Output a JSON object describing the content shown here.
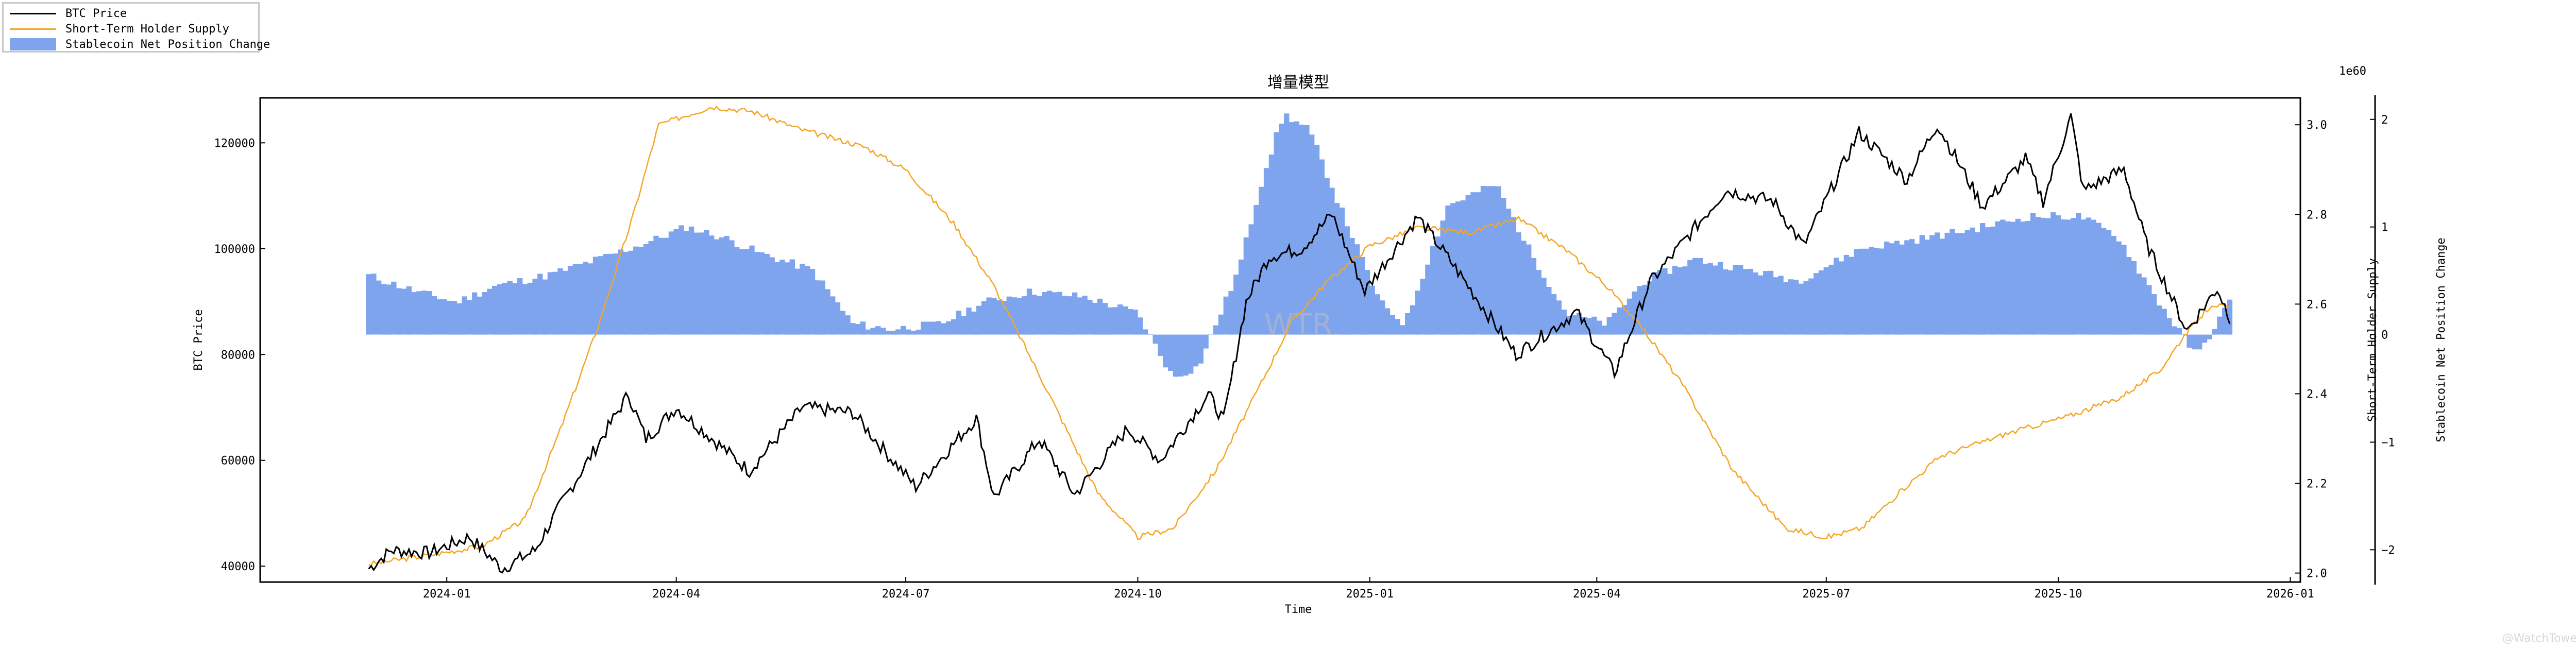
{
  "chart_data": {
    "type": "line",
    "title": "增量模型",
    "xlabel": "Time",
    "ylabel": "BTC Price",
    "y2label": "Short-Term Holder Supply",
    "y3label": "Stablecoin Net Position Change",
    "y2_offset_text": "1e60",
    "watermark": "WTR",
    "grid": false,
    "legend_position": "top-left",
    "x_ticks": [
      "2024-01",
      "2024-04",
      "2024-07",
      "2024-10",
      "2025-01",
      "2025-04",
      "2025-07",
      "2025-10",
      "2026-01"
    ],
    "y_ticks": [
      "40000",
      "60000",
      "80000",
      "100000",
      "120000"
    ],
    "y2_ticks": [
      "2.0",
      "2.2",
      "2.4",
      "2.6",
      "2.8",
      "3.0"
    ],
    "y3_ticks": [
      "−2",
      "−1",
      "0",
      "1",
      "2"
    ],
    "xlim": [
      "2023-10-19",
      "2026-01-05"
    ],
    "ylim": [
      37000,
      128500
    ],
    "y2lim": [
      1.98,
      3.06
    ],
    "y3lim": [
      -2.3,
      2.2
    ],
    "series": [
      {
        "name": "BTC Price",
        "color": "#000000",
        "axis": "left",
        "points": [
          [
            "2023-12-01",
            39500
          ],
          [
            "2023-12-10",
            43000
          ],
          [
            "2023-12-25",
            42500
          ],
          [
            "2024-01-10",
            45500
          ],
          [
            "2024-01-23",
            39500
          ],
          [
            "2024-02-05",
            43000
          ],
          [
            "2024-02-15",
            51500
          ],
          [
            "2024-02-28",
            61500
          ],
          [
            "2024-03-13",
            72500
          ],
          [
            "2024-03-20",
            64000
          ],
          [
            "2024-04-01",
            70000
          ],
          [
            "2024-04-13",
            65000
          ],
          [
            "2024-04-30",
            58000
          ],
          [
            "2024-05-21",
            70000
          ],
          [
            "2024-06-10",
            69000
          ],
          [
            "2024-06-24",
            61000
          ],
          [
            "2024-07-05",
            55000
          ],
          [
            "2024-07-29",
            68000
          ],
          [
            "2024-08-05",
            53000
          ],
          [
            "2024-08-23",
            64000
          ],
          [
            "2024-09-06",
            53500
          ],
          [
            "2024-09-27",
            66000
          ],
          [
            "2024-10-10",
            60000
          ],
          [
            "2024-10-29",
            72500
          ],
          [
            "2024-11-04",
            67500
          ],
          [
            "2024-11-13",
            90000
          ],
          [
            "2024-11-22",
            98500
          ],
          [
            "2024-12-05",
            100000
          ],
          [
            "2024-12-17",
            106500
          ],
          [
            "2024-12-30",
            92000
          ],
          [
            "2025-01-20",
            106000
          ],
          [
            "2025-02-03",
            97000
          ],
          [
            "2025-02-28",
            80000
          ],
          [
            "2025-03-24",
            88000
          ],
          [
            "2025-04-08",
            76500
          ],
          [
            "2025-04-22",
            93500
          ],
          [
            "2025-05-22",
            111000
          ],
          [
            "2025-06-10",
            109000
          ],
          [
            "2025-06-22",
            100500
          ],
          [
            "2025-07-14",
            122000
          ],
          [
            "2025-08-02",
            113000
          ],
          [
            "2025-08-14",
            123500
          ],
          [
            "2025-09-01",
            108000
          ],
          [
            "2025-09-18",
            117000
          ],
          [
            "2025-09-25",
            109000
          ],
          [
            "2025-10-06",
            125000
          ],
          [
            "2025-10-11",
            111000
          ],
          [
            "2025-10-27",
            115000
          ],
          [
            "2025-11-05",
            101000
          ],
          [
            "2025-11-21",
            84500
          ],
          [
            "2025-12-03",
            92500
          ],
          [
            "2025-12-08",
            87000
          ]
        ]
      },
      {
        "name": "Short-Term Holder Supply",
        "color": "#f5a623",
        "axis": "right",
        "points": [
          [
            "2023-12-01",
            2.02
          ],
          [
            "2023-12-25",
            2.04
          ],
          [
            "2024-01-15",
            2.06
          ],
          [
            "2024-02-01",
            2.12
          ],
          [
            "2024-02-15",
            2.32
          ],
          [
            "2024-03-01",
            2.55
          ],
          [
            "2024-03-15",
            2.8
          ],
          [
            "2024-03-25",
            3.0
          ],
          [
            "2024-04-15",
            3.04
          ],
          [
            "2024-05-01",
            3.03
          ],
          [
            "2024-05-20",
            2.99
          ],
          [
            "2024-06-15",
            2.95
          ],
          [
            "2024-07-01",
            2.9
          ],
          [
            "2024-07-20",
            2.78
          ],
          [
            "2024-08-05",
            2.64
          ],
          [
            "2024-08-25",
            2.42
          ],
          [
            "2024-09-15",
            2.18
          ],
          [
            "2024-10-01",
            2.08
          ],
          [
            "2024-10-15",
            2.1
          ],
          [
            "2024-11-01",
            2.23
          ],
          [
            "2024-11-15",
            2.38
          ],
          [
            "2024-12-01",
            2.56
          ],
          [
            "2024-12-15",
            2.65
          ],
          [
            "2025-01-01",
            2.73
          ],
          [
            "2025-01-20",
            2.77
          ],
          [
            "2025-02-10",
            2.76
          ],
          [
            "2025-03-01",
            2.79
          ],
          [
            "2025-03-20",
            2.72
          ],
          [
            "2025-04-05",
            2.64
          ],
          [
            "2025-04-20",
            2.54
          ],
          [
            "2025-05-05",
            2.42
          ],
          [
            "2025-05-25",
            2.23
          ],
          [
            "2025-06-15",
            2.1
          ],
          [
            "2025-07-01",
            2.08
          ],
          [
            "2025-07-15",
            2.1
          ],
          [
            "2025-08-01",
            2.19
          ],
          [
            "2025-08-15",
            2.26
          ],
          [
            "2025-09-10",
            2.31
          ],
          [
            "2025-10-05",
            2.35
          ],
          [
            "2025-10-25",
            2.39
          ],
          [
            "2025-11-10",
            2.45
          ],
          [
            "2025-11-20",
            2.53
          ],
          [
            "2025-12-01",
            2.6
          ],
          [
            "2025-12-08",
            2.59
          ]
        ]
      },
      {
        "name": "Stablecoin Net Position Change",
        "color": "#7fa4ee",
        "axis": "right2",
        "type": "bar",
        "points": [
          [
            "2023-12-01",
            0.55
          ],
          [
            "2023-12-20",
            0.4
          ],
          [
            "2024-01-05",
            0.3
          ],
          [
            "2024-01-20",
            0.45
          ],
          [
            "2024-02-10",
            0.55
          ],
          [
            "2024-03-01",
            0.7
          ],
          [
            "2024-03-20",
            0.85
          ],
          [
            "2024-04-05",
            1.0
          ],
          [
            "2024-04-20",
            0.9
          ],
          [
            "2024-05-05",
            0.75
          ],
          [
            "2024-05-25",
            0.6
          ],
          [
            "2024-06-10",
            0.1
          ],
          [
            "2024-06-25",
            0.05
          ],
          [
            "2024-07-15",
            0.1
          ],
          [
            "2024-08-01",
            0.3
          ],
          [
            "2024-08-20",
            0.4
          ],
          [
            "2024-09-10",
            0.35
          ],
          [
            "2024-10-01",
            0.2
          ],
          [
            "2024-10-15",
            -0.4
          ],
          [
            "2024-10-25",
            -0.3
          ],
          [
            "2024-11-10",
            0.6
          ],
          [
            "2024-11-20",
            1.5
          ],
          [
            "2024-11-28",
            2.05
          ],
          [
            "2024-12-08",
            1.9
          ],
          [
            "2024-12-20",
            1.2
          ],
          [
            "2025-01-05",
            0.3
          ],
          [
            "2025-01-15",
            0.1
          ],
          [
            "2025-02-01",
            1.2
          ],
          [
            "2025-02-20",
            1.4
          ],
          [
            "2025-03-05",
            0.8
          ],
          [
            "2025-03-20",
            0.2
          ],
          [
            "2025-04-05",
            0.1
          ],
          [
            "2025-04-20",
            0.5
          ],
          [
            "2025-05-10",
            0.7
          ],
          [
            "2025-06-01",
            0.6
          ],
          [
            "2025-06-20",
            0.5
          ],
          [
            "2025-07-15",
            0.8
          ],
          [
            "2025-08-10",
            0.9
          ],
          [
            "2025-09-01",
            1.0
          ],
          [
            "2025-09-20",
            1.1
          ],
          [
            "2025-10-10",
            1.1
          ],
          [
            "2025-10-25",
            0.9
          ],
          [
            "2025-11-10",
            0.3
          ],
          [
            "2025-11-25",
            -0.2
          ],
          [
            "2025-12-08",
            0.3
          ]
        ]
      }
    ]
  },
  "legend": {
    "items": [
      {
        "label": "BTC Price",
        "kind": "line",
        "color": "#000000"
      },
      {
        "label": "Short-Term Holder Supply",
        "kind": "line",
        "color": "#f5a623"
      },
      {
        "label": "Stablecoin Net Position Change",
        "kind": "patch",
        "color": "#7fa4ee"
      }
    ]
  },
  "footer_watermark": "@WatchTower_"
}
